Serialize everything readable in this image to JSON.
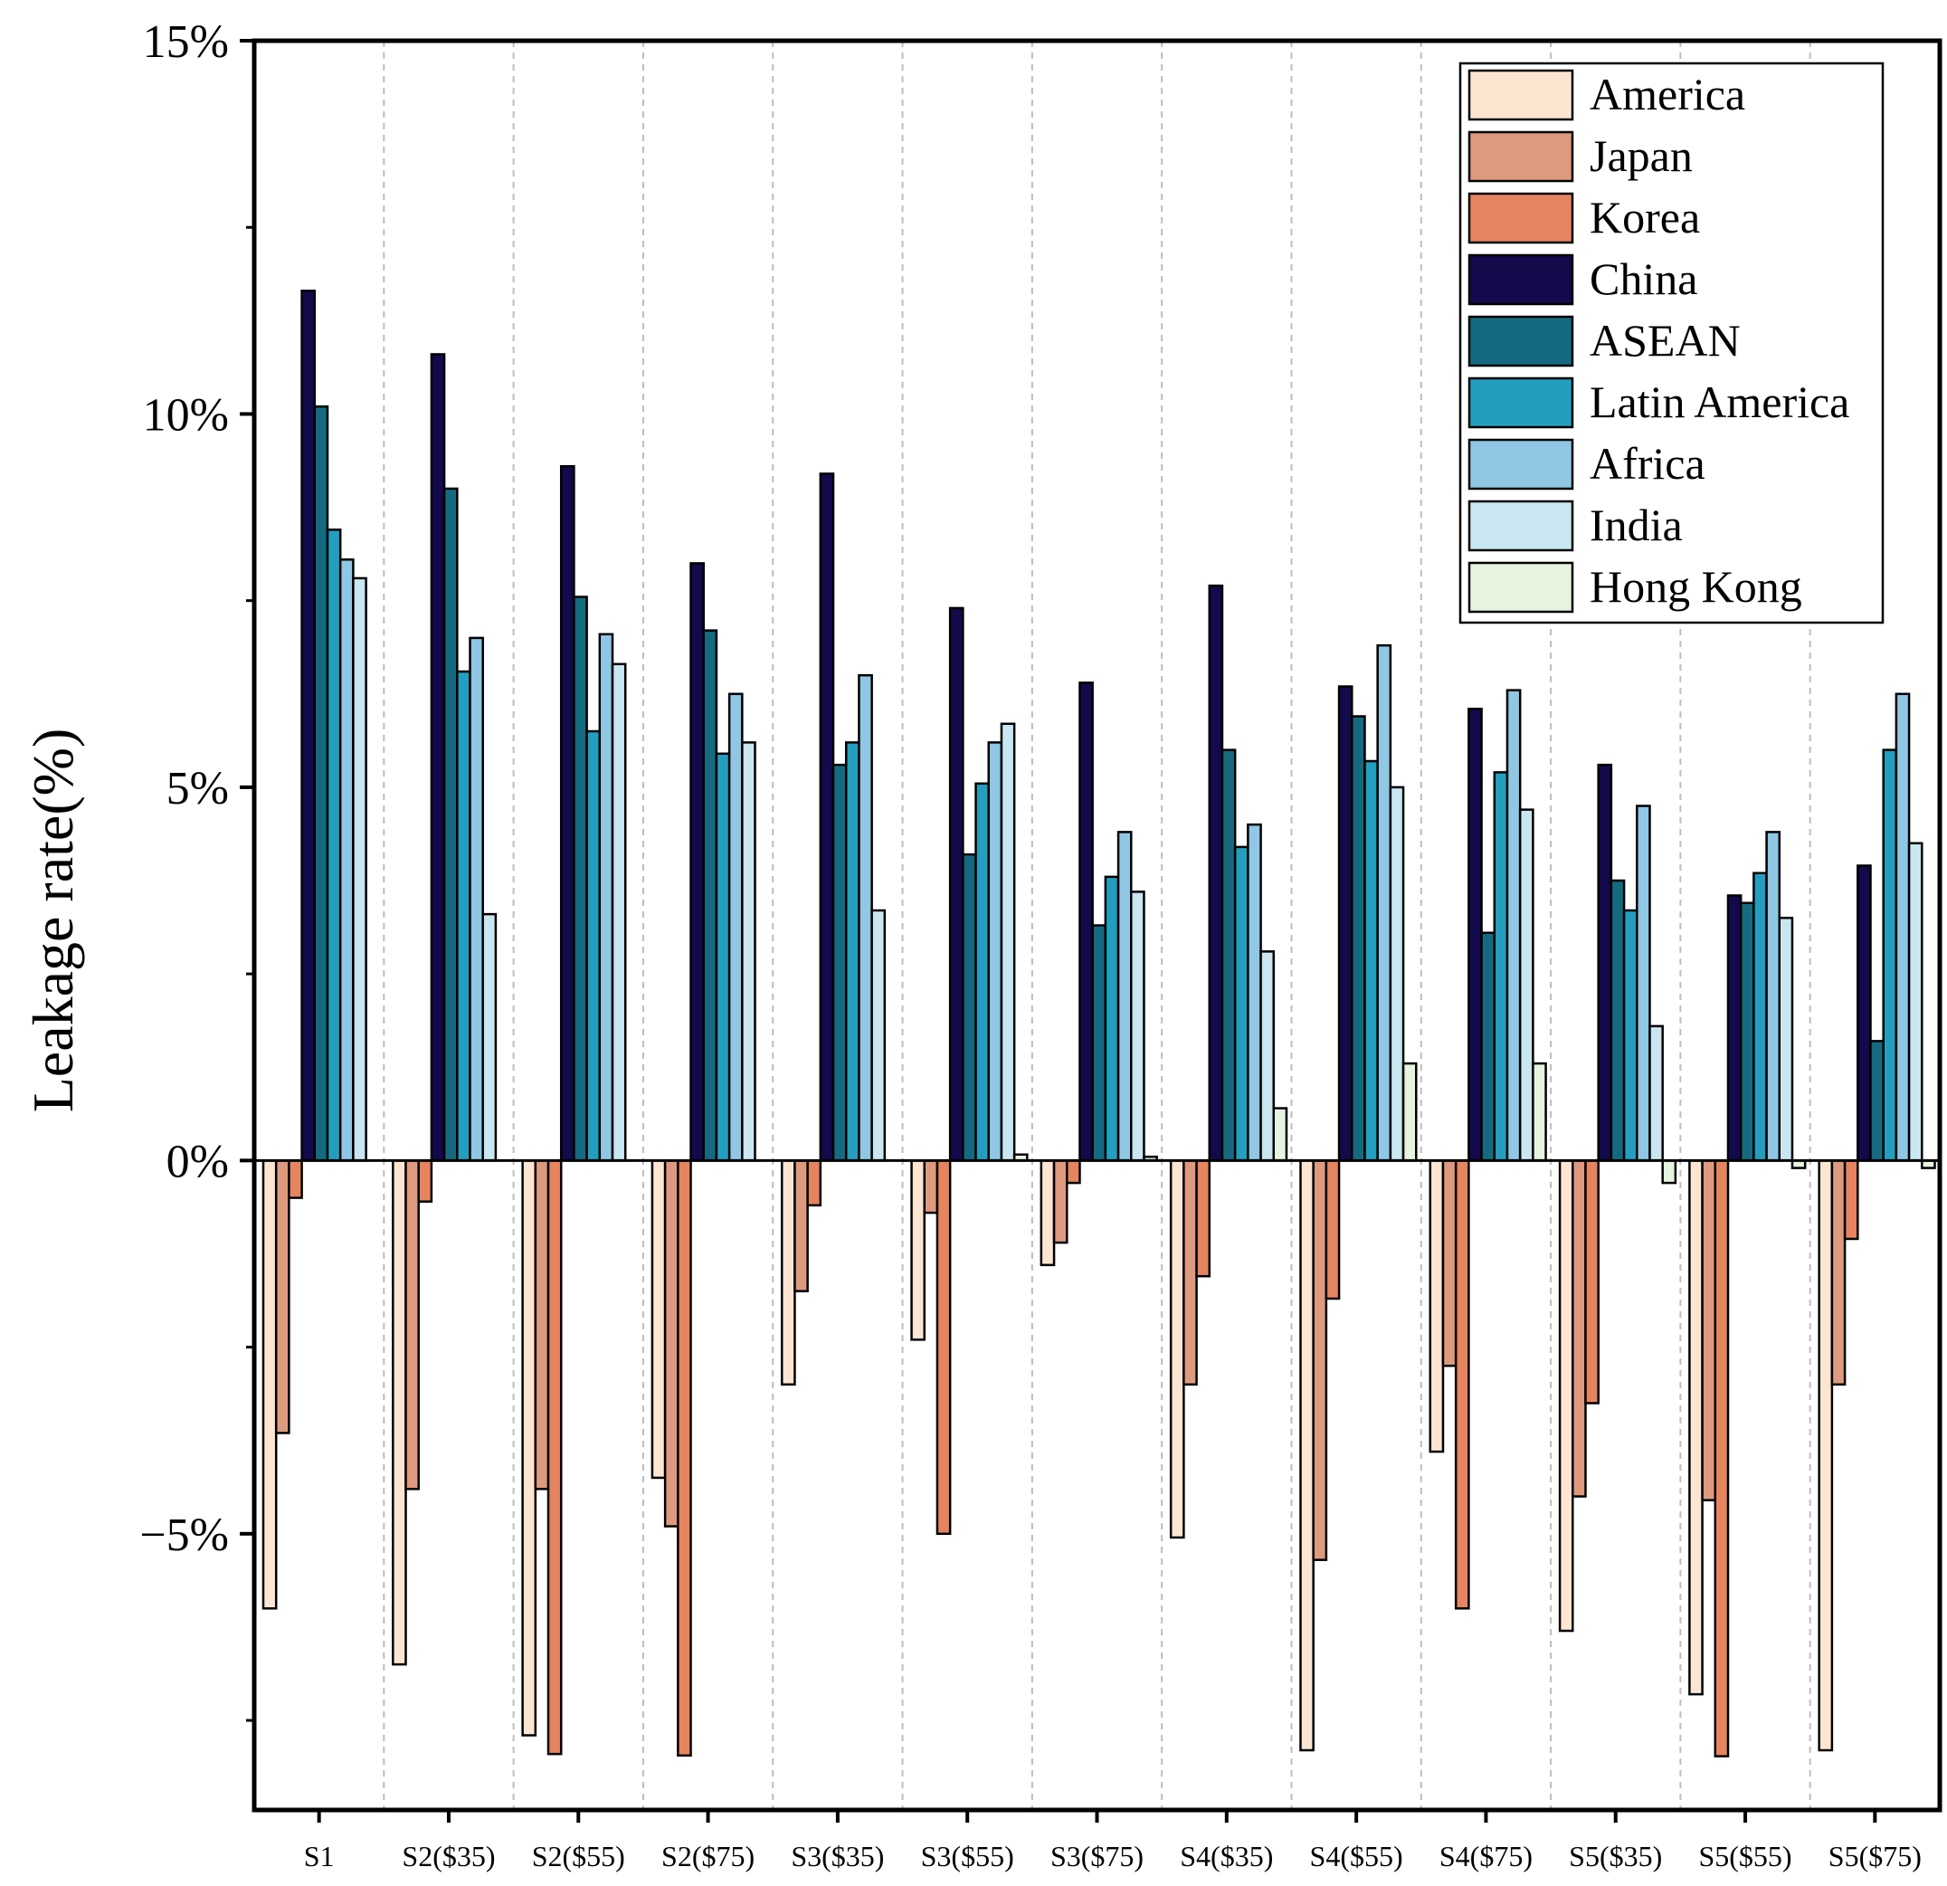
{
  "chart_data": {
    "type": "bar",
    "title": "",
    "xlabel": "",
    "ylabel": "Leakage rate(%)",
    "ylim": [
      -8.7,
      15
    ],
    "yticks": [
      {
        "value": 15,
        "label": "15%"
      },
      {
        "value": 10,
        "label": "10%"
      },
      {
        "value": 5,
        "label": "5%"
      },
      {
        "value": 0,
        "label": "0%"
      },
      {
        "value": -5,
        "label": "−5%"
      }
    ],
    "minor_ticks": [
      12.5,
      7.5,
      2.5,
      -2.5,
      -7.5
    ],
    "grid": "vertical dashed separators between categories",
    "legend_position": "top-right",
    "categories": [
      "S1",
      "S2($35)",
      "S2($55)",
      "S2($75)",
      "S3($35)",
      "S3($55)",
      "S3($75)",
      "S4($35)",
      "S4($55)",
      "S4($75)",
      "S5($35)",
      "S5($55)",
      "S5($75)"
    ],
    "series": [
      {
        "name": "America",
        "color": "#FCE6D2",
        "values": [
          -6.0,
          -6.75,
          -7.7,
          -4.25,
          -3.0,
          -2.4,
          -1.4,
          -5.05,
          -7.9,
          -3.9,
          -6.3,
          -7.15,
          -7.9
        ]
      },
      {
        "name": "Japan",
        "color": "#DE9A7E",
        "values": [
          -3.65,
          -4.4,
          -4.4,
          -4.9,
          -1.75,
          -0.7,
          -1.1,
          -3.0,
          -5.35,
          -2.75,
          -4.5,
          -4.55,
          -3.0
        ]
      },
      {
        "name": "Korea",
        "color": "#E58560",
        "values": [
          -0.5,
          -0.55,
          -7.95,
          -7.97,
          -0.6,
          -5.0,
          -0.3,
          -1.55,
          -1.85,
          -6.0,
          -3.25,
          -7.98,
          -1.05
        ]
      },
      {
        "name": "China",
        "color": "#120A4B",
        "values": [
          11.65,
          10.8,
          9.3,
          8.0,
          9.2,
          7.4,
          6.4,
          7.7,
          6.35,
          6.05,
          5.3,
          3.55,
          3.95
        ]
      },
      {
        "name": "ASEAN",
        "color": "#166A80",
        "values": [
          10.1,
          9.0,
          7.55,
          7.1,
          5.3,
          4.1,
          3.15,
          5.5,
          5.95,
          3.05,
          3.75,
          3.45,
          1.6
        ]
      },
      {
        "name": "Latin America",
        "color": "#249EBE",
        "values": [
          8.45,
          6.55,
          5.75,
          5.45,
          5.6,
          5.05,
          3.8,
          4.2,
          5.35,
          5.2,
          3.35,
          3.85,
          5.5
        ]
      },
      {
        "name": "Africa",
        "color": "#8FC7E4",
        "values": [
          8.05,
          7.0,
          7.05,
          6.25,
          6.5,
          5.6,
          4.4,
          4.5,
          6.9,
          6.3,
          4.75,
          4.4,
          6.25
        ]
      },
      {
        "name": "India",
        "color": "#C9E6F1",
        "values": [
          7.8,
          3.3,
          6.65,
          5.6,
          3.35,
          5.85,
          3.6,
          2.8,
          5.0,
          4.7,
          1.8,
          3.25,
          4.25
        ]
      },
      {
        "name": "Hong Kong",
        "color": "#E6F3DE",
        "values": [
          0.0,
          0.0,
          0.0,
          0.0,
          0.0,
          0.08,
          0.05,
          0.7,
          1.3,
          1.3,
          -0.3,
          -0.1,
          -0.1
        ]
      }
    ]
  }
}
